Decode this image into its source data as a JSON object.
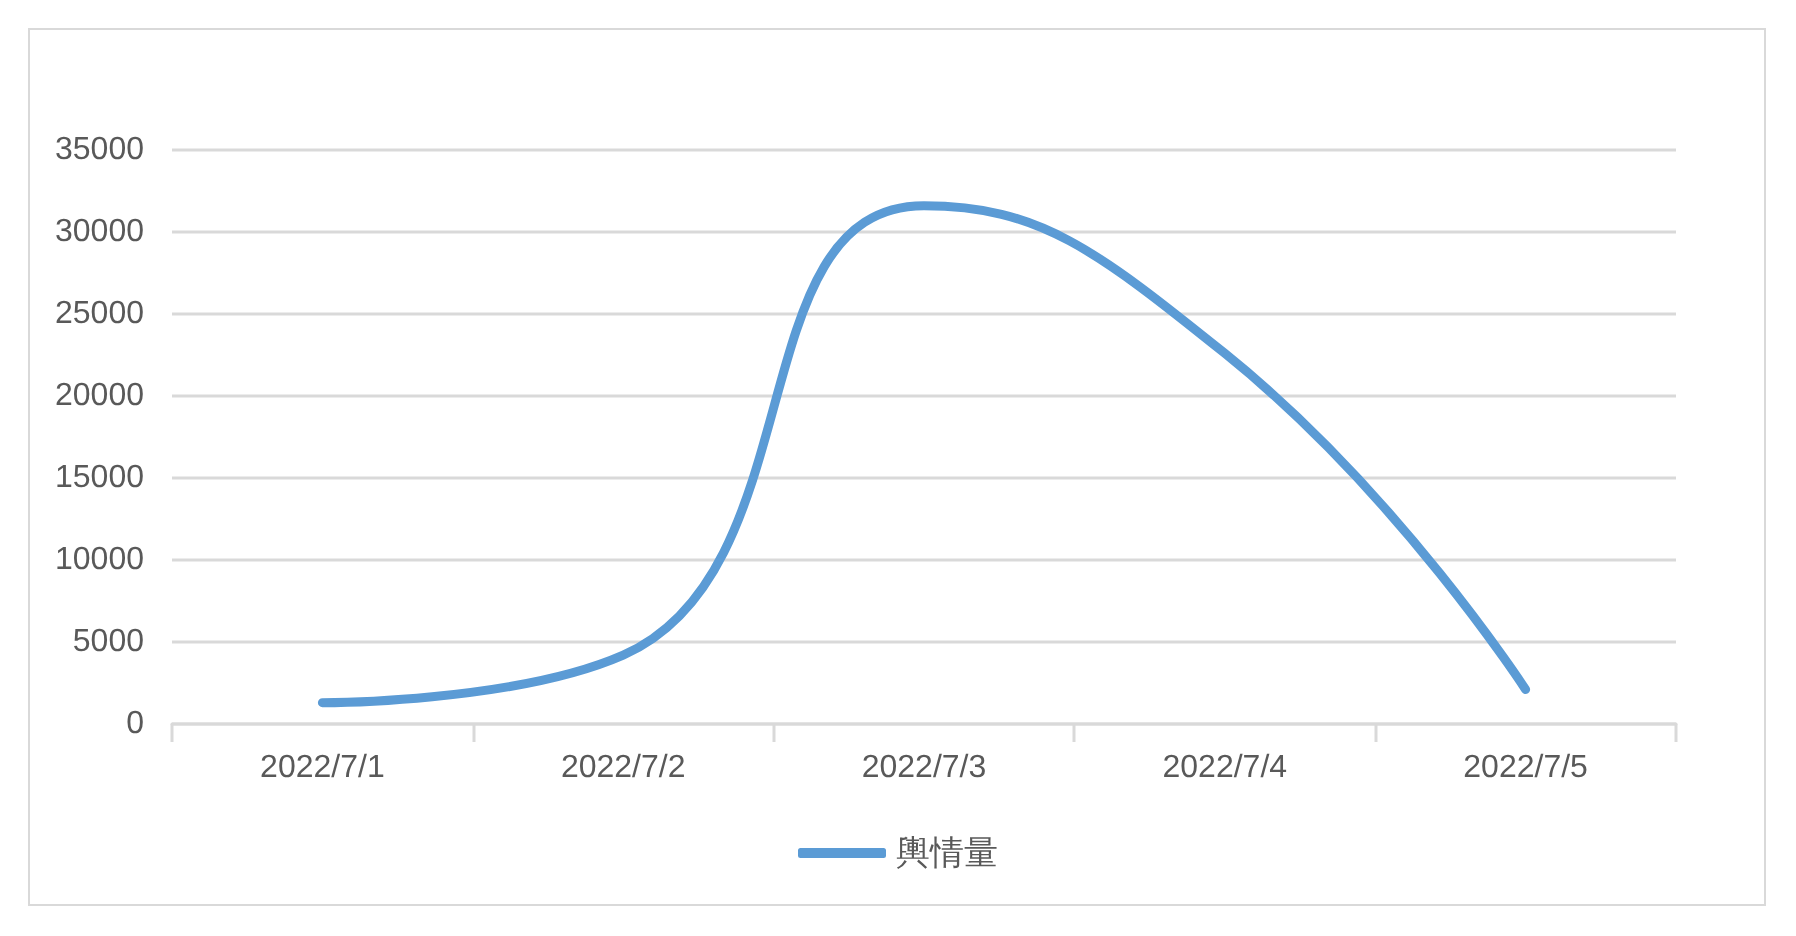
{
  "chart_data": {
    "type": "line",
    "categories": [
      "2022/7/1",
      "2022/7/2",
      "2022/7/3",
      "2022/7/4",
      "2022/7/5"
    ],
    "series": [
      {
        "name": "輿情量",
        "color": "#5b9bd5",
        "values": [
          1300,
          4200,
          31600,
          22600,
          2100
        ]
      }
    ],
    "ylim": [
      0,
      35000
    ],
    "yticks": [
      0,
      5000,
      10000,
      15000,
      20000,
      25000,
      30000,
      35000
    ],
    "grid": "y",
    "legend": "bottom",
    "marker": "none",
    "line_style": "solid"
  }
}
